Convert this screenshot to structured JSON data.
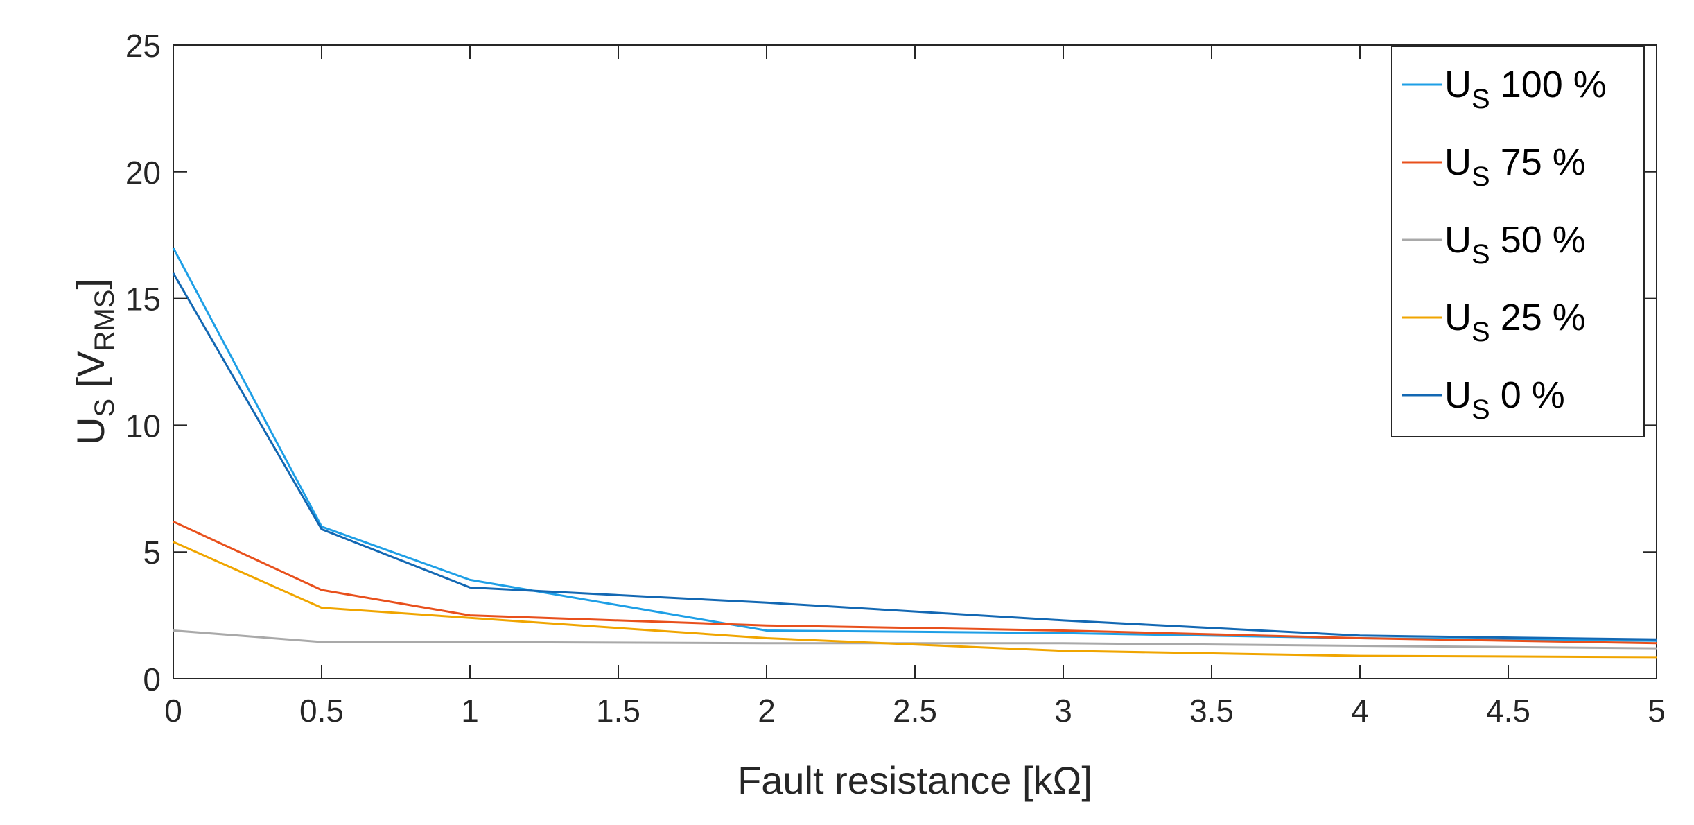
{
  "chart_data": {
    "type": "line",
    "xlabel": "Fault resistance [kΩ]",
    "ylabel": {
      "main": "U",
      "main_sub": "S",
      "unit_open": " [V",
      "unit_sub": "RMS",
      "unit_close": "]"
    },
    "xlim": [
      0,
      5
    ],
    "ylim": [
      0,
      25
    ],
    "xticks": [
      0,
      0.5,
      1,
      1.5,
      2,
      2.5,
      3,
      3.5,
      4,
      4.5,
      5
    ],
    "xtick_labels": [
      "0",
      "0.5",
      "1",
      "1.5",
      "2",
      "2.5",
      "3",
      "3.5",
      "4",
      "4.5",
      "5"
    ],
    "yticks": [
      0,
      5,
      10,
      15,
      20,
      25
    ],
    "ytick_labels": [
      "0",
      "5",
      "10",
      "15",
      "20",
      "25"
    ],
    "grid": false,
    "legend_position": "top-right",
    "x": [
      0,
      0.5,
      1,
      2,
      3,
      4,
      5
    ],
    "series": [
      {
        "name": {
          "main": "U",
          "sub": "S",
          "suffix": " 100 %"
        },
        "color": "#1E9FE6",
        "values": [
          17.0,
          6.0,
          3.9,
          1.9,
          1.8,
          1.6,
          1.5
        ]
      },
      {
        "name": {
          "main": "U",
          "sub": "S",
          "suffix": " 75 %"
        },
        "color": "#E8501C",
        "values": [
          6.2,
          3.5,
          2.5,
          2.1,
          1.9,
          1.6,
          1.4
        ]
      },
      {
        "name": {
          "main": "U",
          "sub": "S",
          "suffix": " 50 %"
        },
        "color": "#A9A9A9",
        "values": [
          1.9,
          1.45,
          1.45,
          1.4,
          1.4,
          1.3,
          1.2
        ]
      },
      {
        "name": {
          "main": "U",
          "sub": "S",
          "suffix": " 25 %"
        },
        "color": "#F0A500",
        "values": [
          5.4,
          2.8,
          2.4,
          1.6,
          1.1,
          0.9,
          0.85
        ]
      },
      {
        "name": {
          "main": "U",
          "sub": "S",
          "suffix": " 0 %"
        },
        "color": "#1368B3",
        "values": [
          16.0,
          5.9,
          3.6,
          3.0,
          2.3,
          1.7,
          1.55
        ]
      }
    ]
  }
}
